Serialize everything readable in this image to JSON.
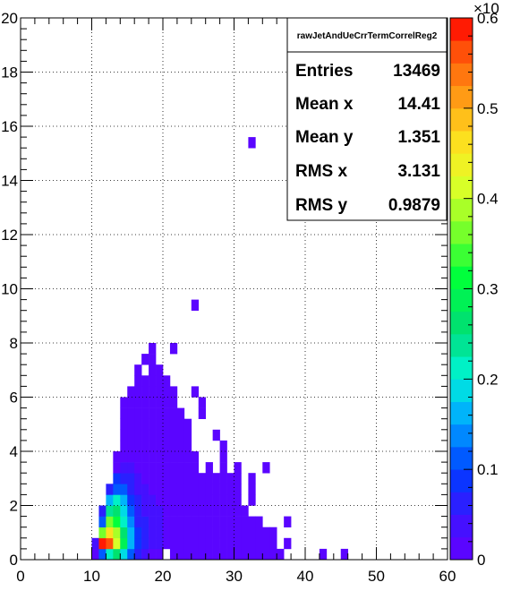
{
  "chart_data": {
    "type": "heatmap",
    "title": "",
    "xlabel": "",
    "ylabel": "",
    "xlim": [
      0,
      60
    ],
    "ylim": [
      0,
      20
    ],
    "xbin_width": 1,
    "ybin_width": 0.4,
    "grid": true,
    "x_ticks": [
      "0",
      "10",
      "20",
      "30",
      "40",
      "50",
      "60"
    ],
    "y_ticks": [
      "0",
      "2",
      "4",
      "6",
      "8",
      "10",
      "12",
      "14",
      "16",
      "18",
      "20"
    ],
    "palette": {
      "range": [
        0,
        0.6
      ],
      "exponent_label": "×10",
      "ticks": [
        "0",
        "0.1",
        "0.2",
        "0.3",
        "0.4",
        "0.5",
        "0.6"
      ]
    },
    "stats_box": {
      "title": "rawJetAndUeCrrTermCorrelReg2",
      "rows": [
        {
          "label": "Entries",
          "value": "13469"
        },
        {
          "label": "Mean x",
          "value": "14.41"
        },
        {
          "label": "Mean y",
          "value": "1.351"
        },
        {
          "label": "RMS x",
          "value": "3.131"
        },
        {
          "label": "RMS y",
          "value": "0.9879"
        }
      ]
    },
    "cells": [
      [
        10,
        0.0,
        0.02
      ],
      [
        10,
        0.4,
        0.04
      ],
      [
        11,
        0.0,
        0.1
      ],
      [
        11,
        0.4,
        0.6
      ],
      [
        11,
        0.8,
        0.36
      ],
      [
        11,
        1.2,
        0.12
      ],
      [
        11,
        1.6,
        0.06
      ],
      [
        12,
        0.0,
        0.2
      ],
      [
        12,
        0.4,
        0.55
      ],
      [
        12,
        0.8,
        0.46
      ],
      [
        12,
        1.2,
        0.35
      ],
      [
        12,
        1.6,
        0.24
      ],
      [
        12,
        2.0,
        0.16
      ],
      [
        12,
        2.4,
        0.06
      ],
      [
        13,
        0.0,
        0.25
      ],
      [
        13,
        0.4,
        0.42
      ],
      [
        13,
        0.8,
        0.38
      ],
      [
        13,
        1.2,
        0.32
      ],
      [
        13,
        1.6,
        0.26
      ],
      [
        13,
        2.0,
        0.2
      ],
      [
        13,
        2.4,
        0.12
      ],
      [
        13,
        2.8,
        0.08
      ],
      [
        13,
        3.2,
        0.02
      ],
      [
        13,
        3.6,
        0.02
      ],
      [
        14,
        0.0,
        0.18
      ],
      [
        14,
        0.4,
        0.28
      ],
      [
        14,
        0.8,
        0.26
      ],
      [
        14,
        1.2,
        0.22
      ],
      [
        14,
        1.6,
        0.19
      ],
      [
        14,
        2.0,
        0.15
      ],
      [
        14,
        2.4,
        0.1
      ],
      [
        14,
        2.8,
        0.07
      ],
      [
        14,
        3.2,
        0.04
      ],
      [
        14,
        3.6,
        0.02
      ],
      [
        14,
        4.0,
        0.02
      ],
      [
        14,
        4.4,
        0.02
      ],
      [
        14,
        4.8,
        0.02
      ],
      [
        14,
        5.2,
        0.02
      ],
      [
        14,
        5.6,
        0.02
      ],
      [
        15,
        0.0,
        0.1
      ],
      [
        15,
        0.4,
        0.17
      ],
      [
        15,
        0.8,
        0.16
      ],
      [
        15,
        1.2,
        0.14
      ],
      [
        15,
        1.6,
        0.12
      ],
      [
        15,
        2.0,
        0.09
      ],
      [
        15,
        2.4,
        0.07
      ],
      [
        15,
        2.8,
        0.05
      ],
      [
        15,
        3.2,
        0.03
      ],
      [
        15,
        3.6,
        0.02
      ],
      [
        15,
        4.0,
        0.02
      ],
      [
        15,
        4.4,
        0.02
      ],
      [
        15,
        4.8,
        0.02
      ],
      [
        15,
        5.2,
        0.02
      ],
      [
        15,
        5.6,
        0.02
      ],
      [
        15,
        6.0,
        0.01
      ],
      [
        16,
        0.0,
        0.05
      ],
      [
        16,
        0.4,
        0.09
      ],
      [
        16,
        0.8,
        0.08
      ],
      [
        16,
        1.2,
        0.07
      ],
      [
        16,
        1.6,
        0.06
      ],
      [
        16,
        2.0,
        0.05
      ],
      [
        16,
        2.4,
        0.04
      ],
      [
        16,
        2.8,
        0.03
      ],
      [
        16,
        3.2,
        0.02
      ],
      [
        16,
        3.6,
        0.02
      ],
      [
        16,
        4.0,
        0.02
      ],
      [
        16,
        4.4,
        0.02
      ],
      [
        16,
        4.8,
        0.02
      ],
      [
        16,
        5.2,
        0.01
      ],
      [
        16,
        5.6,
        0.01
      ],
      [
        16,
        6.0,
        0.01
      ],
      [
        16,
        6.4,
        0.01
      ],
      [
        16,
        6.8,
        0.01
      ],
      [
        17,
        0.0,
        0.03
      ],
      [
        17,
        0.4,
        0.06
      ],
      [
        17,
        0.8,
        0.05
      ],
      [
        17,
        1.2,
        0.05
      ],
      [
        17,
        1.6,
        0.04
      ],
      [
        17,
        2.0,
        0.04
      ],
      [
        17,
        2.4,
        0.03
      ],
      [
        17,
        2.8,
        0.02
      ],
      [
        17,
        3.2,
        0.02
      ],
      [
        17,
        3.6,
        0.02
      ],
      [
        17,
        4.0,
        0.02
      ],
      [
        17,
        4.4,
        0.02
      ],
      [
        17,
        4.8,
        0.02
      ],
      [
        17,
        5.2,
        0.01
      ],
      [
        17,
        5.6,
        0.01
      ],
      [
        17,
        6.0,
        0.01
      ],
      [
        17,
        6.4,
        0.01
      ],
      [
        17,
        7.2,
        0.01
      ],
      [
        18,
        0.0,
        0.02
      ],
      [
        18,
        0.4,
        0.04
      ],
      [
        18,
        0.8,
        0.04
      ],
      [
        18,
        1.2,
        0.04
      ],
      [
        18,
        1.6,
        0.03
      ],
      [
        18,
        2.0,
        0.03
      ],
      [
        18,
        2.4,
        0.02
      ],
      [
        18,
        2.8,
        0.02
      ],
      [
        18,
        3.2,
        0.02
      ],
      [
        18,
        3.6,
        0.02
      ],
      [
        18,
        4.0,
        0.02
      ],
      [
        18,
        4.4,
        0.02
      ],
      [
        18,
        4.8,
        0.02
      ],
      [
        18,
        5.2,
        0.01
      ],
      [
        18,
        5.6,
        0.01
      ],
      [
        18,
        6.0,
        0.01
      ],
      [
        18,
        6.4,
        0.01
      ],
      [
        18,
        6.8,
        0.01
      ],
      [
        18,
        7.2,
        0.01
      ],
      [
        18,
        7.6,
        0.01
      ],
      [
        19,
        0.0,
        0.02
      ],
      [
        19,
        0.4,
        0.03
      ],
      [
        19,
        0.8,
        0.03
      ],
      [
        19,
        1.2,
        0.03
      ],
      [
        19,
        1.6,
        0.03
      ],
      [
        19,
        2.0,
        0.02
      ],
      [
        19,
        2.4,
        0.02
      ],
      [
        19,
        2.8,
        0.02
      ],
      [
        19,
        3.2,
        0.02
      ],
      [
        19,
        3.6,
        0.02
      ],
      [
        19,
        4.0,
        0.01
      ],
      [
        19,
        4.4,
        0.01
      ],
      [
        19,
        4.8,
        0.01
      ],
      [
        19,
        5.2,
        0.01
      ],
      [
        19,
        5.6,
        0.01
      ],
      [
        19,
        6.0,
        0.01
      ],
      [
        19,
        6.4,
        0.01
      ],
      [
        19,
        6.8,
        0.01
      ],
      [
        20,
        0.4,
        0.02
      ],
      [
        20,
        0.8,
        0.02
      ],
      [
        20,
        1.2,
        0.02
      ],
      [
        20,
        1.6,
        0.02
      ],
      [
        20,
        2.0,
        0.02
      ],
      [
        20,
        2.4,
        0.02
      ],
      [
        20,
        2.8,
        0.02
      ],
      [
        20,
        3.2,
        0.01
      ],
      [
        20,
        3.6,
        0.01
      ],
      [
        20,
        4.0,
        0.01
      ],
      [
        20,
        4.4,
        0.01
      ],
      [
        20,
        4.8,
        0.01
      ],
      [
        20,
        5.2,
        0.01
      ],
      [
        20,
        5.6,
        0.01
      ],
      [
        20,
        6.0,
        0.01
      ],
      [
        20,
        6.4,
        0.01
      ],
      [
        21,
        0.0,
        0.02
      ],
      [
        21,
        0.4,
        0.02
      ],
      [
        21,
        0.8,
        0.02
      ],
      [
        21,
        1.2,
        0.02
      ],
      [
        21,
        1.6,
        0.02
      ],
      [
        21,
        2.0,
        0.02
      ],
      [
        21,
        2.4,
        0.02
      ],
      [
        21,
        2.8,
        0.01
      ],
      [
        21,
        3.2,
        0.01
      ],
      [
        21,
        3.6,
        0.01
      ],
      [
        21,
        4.0,
        0.01
      ],
      [
        21,
        4.4,
        0.01
      ],
      [
        21,
        4.8,
        0.01
      ],
      [
        21,
        5.2,
        0.01
      ],
      [
        21,
        5.6,
        0.01
      ],
      [
        21,
        6.0,
        0.01
      ],
      [
        21,
        7.6,
        0.01
      ],
      [
        22,
        0.0,
        0.02
      ],
      [
        22,
        0.4,
        0.02
      ],
      [
        22,
        0.8,
        0.02
      ],
      [
        22,
        1.2,
        0.02
      ],
      [
        22,
        1.6,
        0.01
      ],
      [
        22,
        2.0,
        0.01
      ],
      [
        22,
        2.4,
        0.01
      ],
      [
        22,
        2.8,
        0.01
      ],
      [
        22,
        3.2,
        0.01
      ],
      [
        22,
        3.6,
        0.01
      ],
      [
        22,
        4.0,
        0.01
      ],
      [
        22,
        4.4,
        0.01
      ],
      [
        22,
        4.8,
        0.01
      ],
      [
        22,
        5.2,
        0.01
      ],
      [
        23,
        0.0,
        0.01
      ],
      [
        23,
        0.4,
        0.01
      ],
      [
        23,
        0.8,
        0.01
      ],
      [
        23,
        1.2,
        0.01
      ],
      [
        23,
        1.6,
        0.01
      ],
      [
        23,
        2.0,
        0.01
      ],
      [
        23,
        2.4,
        0.01
      ],
      [
        23,
        2.8,
        0.01
      ],
      [
        23,
        3.2,
        0.01
      ],
      [
        23,
        3.6,
        0.01
      ],
      [
        23,
        4.0,
        0.01
      ],
      [
        23,
        4.4,
        0.01
      ],
      [
        23,
        4.8,
        0.01
      ],
      [
        24,
        0.0,
        0.01
      ],
      [
        24,
        0.4,
        0.01
      ],
      [
        24,
        0.8,
        0.01
      ],
      [
        24,
        1.2,
        0.01
      ],
      [
        24,
        1.6,
        0.01
      ],
      [
        24,
        2.0,
        0.01
      ],
      [
        24,
        2.4,
        0.01
      ],
      [
        24,
        2.8,
        0.01
      ],
      [
        24,
        3.2,
        0.01
      ],
      [
        24,
        3.6,
        0.01
      ],
      [
        24,
        6.0,
        0.01
      ],
      [
        24,
        9.2,
        0.01
      ],
      [
        25,
        0.0,
        0.01
      ],
      [
        25,
        0.4,
        0.01
      ],
      [
        25,
        0.8,
        0.01
      ],
      [
        25,
        1.2,
        0.01
      ],
      [
        25,
        1.6,
        0.01
      ],
      [
        25,
        2.0,
        0.01
      ],
      [
        25,
        2.4,
        0.01
      ],
      [
        25,
        2.8,
        0.01
      ],
      [
        25,
        5.2,
        0.01
      ],
      [
        25,
        5.6,
        0.01
      ],
      [
        26,
        0.0,
        0.01
      ],
      [
        26,
        0.4,
        0.01
      ],
      [
        26,
        0.8,
        0.01
      ],
      [
        26,
        1.2,
        0.01
      ],
      [
        26,
        1.6,
        0.01
      ],
      [
        26,
        2.0,
        0.01
      ],
      [
        26,
        2.4,
        0.01
      ],
      [
        26,
        2.8,
        0.01
      ],
      [
        26,
        3.2,
        0.01
      ],
      [
        27,
        0.0,
        0.01
      ],
      [
        27,
        0.4,
        0.01
      ],
      [
        27,
        0.8,
        0.01
      ],
      [
        27,
        1.2,
        0.01
      ],
      [
        27,
        1.6,
        0.01
      ],
      [
        27,
        2.0,
        0.01
      ],
      [
        27,
        2.4,
        0.01
      ],
      [
        27,
        2.8,
        0.01
      ],
      [
        27,
        4.4,
        0.01
      ],
      [
        28,
        0.0,
        0.01
      ],
      [
        28,
        0.4,
        0.01
      ],
      [
        28,
        0.8,
        0.01
      ],
      [
        28,
        1.2,
        0.01
      ],
      [
        28,
        1.6,
        0.01
      ],
      [
        28,
        2.0,
        0.01
      ],
      [
        28,
        2.4,
        0.01
      ],
      [
        28,
        2.8,
        0.01
      ],
      [
        28,
        3.2,
        0.01
      ],
      [
        28,
        3.6,
        0.01
      ],
      [
        28,
        4.0,
        0.01
      ],
      [
        29,
        0.0,
        0.01
      ],
      [
        29,
        0.4,
        0.01
      ],
      [
        29,
        0.8,
        0.01
      ],
      [
        29,
        1.2,
        0.01
      ],
      [
        29,
        1.6,
        0.01
      ],
      [
        29,
        2.0,
        0.01
      ],
      [
        29,
        2.4,
        0.01
      ],
      [
        29,
        2.8,
        0.01
      ],
      [
        30,
        0.0,
        0.01
      ],
      [
        30,
        0.4,
        0.01
      ],
      [
        30,
        0.8,
        0.01
      ],
      [
        30,
        1.2,
        0.01
      ],
      [
        30,
        1.6,
        0.01
      ],
      [
        30,
        2.0,
        0.01
      ],
      [
        30,
        2.4,
        0.01
      ],
      [
        30,
        2.8,
        0.01
      ],
      [
        30,
        3.2,
        0.01
      ],
      [
        31,
        0.0,
        0.01
      ],
      [
        31,
        0.4,
        0.01
      ],
      [
        31,
        0.8,
        0.01
      ],
      [
        31,
        1.2,
        0.01
      ],
      [
        31,
        1.6,
        0.01
      ],
      [
        32,
        0.0,
        0.01
      ],
      [
        32,
        0.4,
        0.01
      ],
      [
        32,
        0.8,
        0.01
      ],
      [
        32,
        1.2,
        0.01
      ],
      [
        32,
        2.0,
        0.01
      ],
      [
        32,
        2.4,
        0.01
      ],
      [
        32,
        2.8,
        0.01
      ],
      [
        32,
        15.2,
        0.01
      ],
      [
        33,
        0.0,
        0.01
      ],
      [
        33,
        0.4,
        0.01
      ],
      [
        33,
        0.8,
        0.01
      ],
      [
        33,
        1.2,
        0.01
      ],
      [
        34,
        0.0,
        0.01
      ],
      [
        34,
        0.4,
        0.01
      ],
      [
        34,
        0.8,
        0.01
      ],
      [
        34,
        3.2,
        0.01
      ],
      [
        35,
        0.0,
        0.01
      ],
      [
        35,
        0.4,
        0.01
      ],
      [
        35,
        0.8,
        0.01
      ],
      [
        36,
        0.0,
        0.01
      ],
      [
        37,
        0.4,
        0.01
      ],
      [
        37,
        1.2,
        0.01
      ],
      [
        42,
        0.0,
        0.01
      ],
      [
        45,
        0.0,
        0.01
      ]
    ]
  }
}
